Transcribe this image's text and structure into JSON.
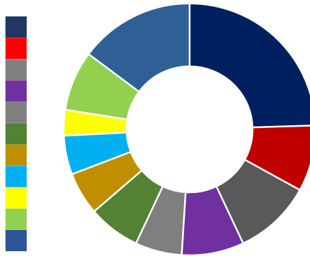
{
  "chart_data": {
    "type": "pie",
    "donut": true,
    "title": "",
    "legend": {
      "placement": "left",
      "labels_visible": false,
      "swatches": [
        "#1F3864",
        "#FF0000",
        "#808080",
        "#7030A0",
        "#808080",
        "#548235",
        "#BF8F00",
        "#00B0F0",
        "#FFFF00",
        "#92D050",
        "#2F5597"
      ]
    },
    "slices": [
      {
        "value": 24.5,
        "color": "#002060"
      },
      {
        "value": 8.5,
        "color": "#C00000"
      },
      {
        "value": 10.0,
        "color": "#595959"
      },
      {
        "value": 8.0,
        "color": "#7030A0"
      },
      {
        "value": 6.0,
        "color": "#7F7F7F"
      },
      {
        "value": 6.7,
        "color": "#548235"
      },
      {
        "value": 5.5,
        "color": "#BF8F00"
      },
      {
        "value": 5.0,
        "color": "#00B0F0"
      },
      {
        "value": 3.3,
        "color": "#FFFF00"
      },
      {
        "value": 7.7,
        "color": "#92D050"
      },
      {
        "value": 14.8,
        "color": "#2E6096"
      }
    ]
  }
}
